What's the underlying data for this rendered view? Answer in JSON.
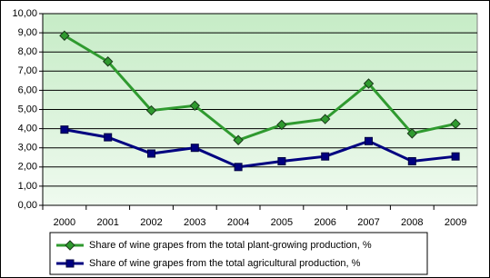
{
  "chart_data": {
    "type": "line",
    "categories": [
      "2000",
      "2001",
      "2002",
      "2003",
      "2004",
      "2005",
      "2006",
      "2007",
      "2008",
      "2009"
    ],
    "series": [
      {
        "name": "Share of wine grapes from the total plant-growing production, %",
        "color": "#2f9a2f",
        "marker": "diamond",
        "values": [
          8.85,
          7.5,
          4.95,
          5.2,
          3.4,
          4.2,
          4.5,
          6.35,
          3.75,
          4.25
        ]
      },
      {
        "name": "Share of wine grapes from the total agricultural production, %",
        "color": "#000080",
        "marker": "square",
        "values": [
          3.95,
          3.55,
          2.7,
          3.0,
          2.0,
          2.3,
          2.55,
          3.35,
          2.3,
          2.55
        ]
      }
    ],
    "ylim": [
      0,
      10
    ],
    "yticks": [
      {
        "value": 0,
        "label": "0,00"
      },
      {
        "value": 1,
        "label": "1,00"
      },
      {
        "value": 2,
        "label": "2,00"
      },
      {
        "value": 3,
        "label": "3,00"
      },
      {
        "value": 4,
        "label": "4,00"
      },
      {
        "value": 5,
        "label": "5,00"
      },
      {
        "value": 6,
        "label": "6,00"
      },
      {
        "value": 7,
        "label": "7,00"
      },
      {
        "value": 8,
        "label": "8,00"
      },
      {
        "value": 9,
        "label": "9,00"
      },
      {
        "value": 10,
        "label": "10,00"
      }
    ],
    "grid": true
  }
}
